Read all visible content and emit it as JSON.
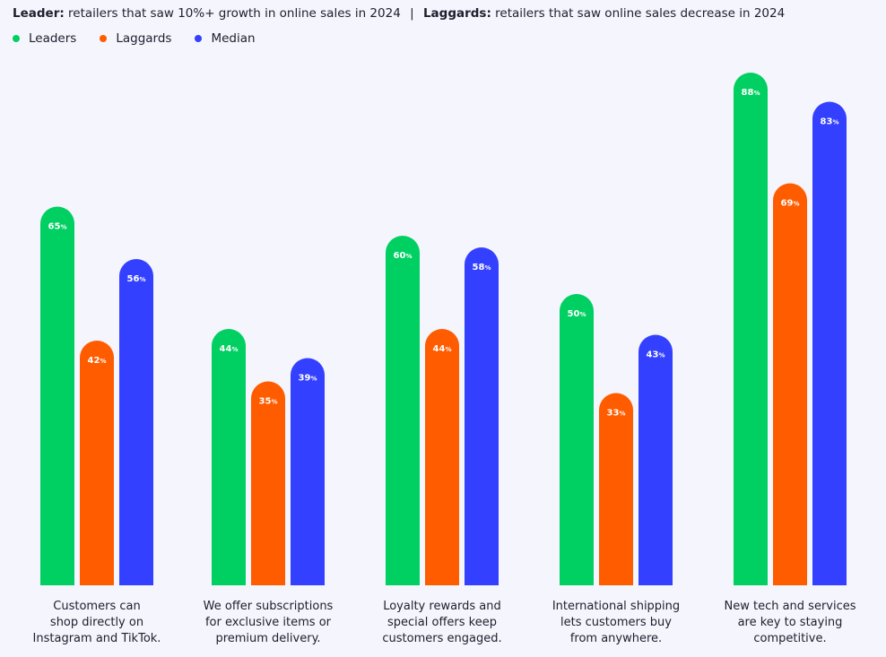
{
  "header": {
    "leader_term": "Leader:",
    "leader_desc": "retailers that saw 10%+ growth in online sales in 2024",
    "separator": "|",
    "laggard_term": "Laggards:",
    "laggard_desc": "retailers that saw online sales decrease in 2024"
  },
  "chart_data": {
    "type": "bar",
    "title": "",
    "xlabel": "",
    "ylabel": "",
    "ylim": [
      0,
      100
    ],
    "legend_position": "top-left",
    "unit_suffix": "%",
    "categories": [
      "Customers can shop directly on Instagram and TikTok.",
      "We offer subscriptions for exclusive items or premium delivery.",
      "Loyalty rewards and special offers keep customers engaged.",
      "International shipping lets customers buy from anywhere.",
      "New tech and services are key to staying competitive."
    ],
    "category_lines": [
      [
        "Customers can",
        "shop directly on",
        "Instagram and TikTok."
      ],
      [
        "We offer subscriptions",
        "for exclusive items or",
        "premium delivery."
      ],
      [
        "Loyalty rewards and",
        "special offers keep",
        "customers engaged."
      ],
      [
        "International shipping",
        "lets customers buy",
        "from anywhere."
      ],
      [
        "New tech and services",
        "are key to staying",
        "competitive."
      ]
    ],
    "series": [
      {
        "name": "Leaders",
        "color": "#00d062",
        "values": [
          65,
          44,
          60,
          50,
          88
        ]
      },
      {
        "name": "Laggards",
        "color": "#ff5c00",
        "values": [
          42,
          35,
          44,
          33,
          69
        ]
      },
      {
        "name": "Median",
        "color": "#3440ff",
        "values": [
          56,
          39,
          58,
          43,
          83
        ]
      }
    ]
  }
}
